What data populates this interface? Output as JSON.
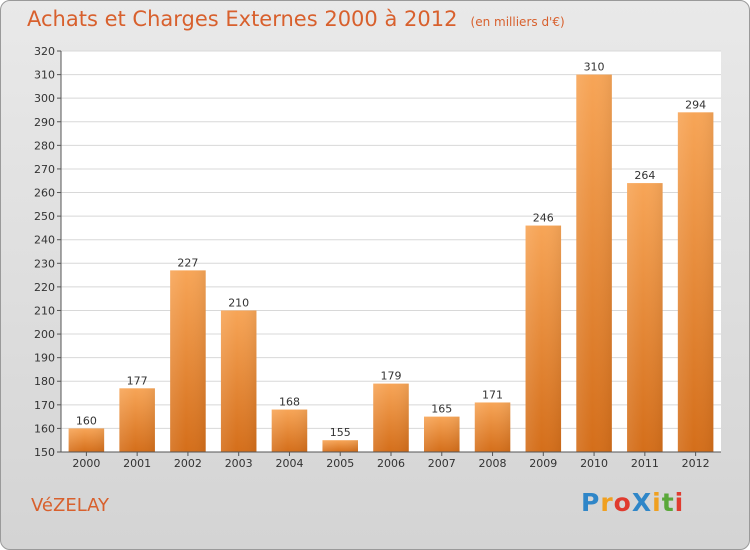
{
  "chart_data": {
    "type": "bar",
    "title": "Achats et Charges Externes 2000 à 2012",
    "subtitle": "(en milliers d'€)",
    "categories": [
      "2000",
      "2001",
      "2002",
      "2003",
      "2004",
      "2005",
      "2006",
      "2007",
      "2008",
      "2009",
      "2010",
      "2011",
      "2012"
    ],
    "values": [
      160,
      177,
      227,
      210,
      168,
      155,
      179,
      165,
      171,
      246,
      310,
      264,
      294
    ],
    "ylim": [
      150,
      320
    ],
    "yticks": [
      150,
      160,
      170,
      180,
      190,
      200,
      210,
      220,
      230,
      240,
      250,
      260,
      270,
      280,
      290,
      300,
      310,
      320
    ],
    "grid": true,
    "bar_color": "#f09a45"
  },
  "commune": "VéZELAY",
  "logo": {
    "text": "ProXiti",
    "letters": [
      "P",
      "r",
      "o",
      "X",
      "i",
      "t",
      "i"
    ],
    "colors": [
      "#2f86c8",
      "#f0a020",
      "#e03b2f",
      "#2f86c8",
      "#f0a020",
      "#5aa83a",
      "#e03b2f"
    ]
  }
}
